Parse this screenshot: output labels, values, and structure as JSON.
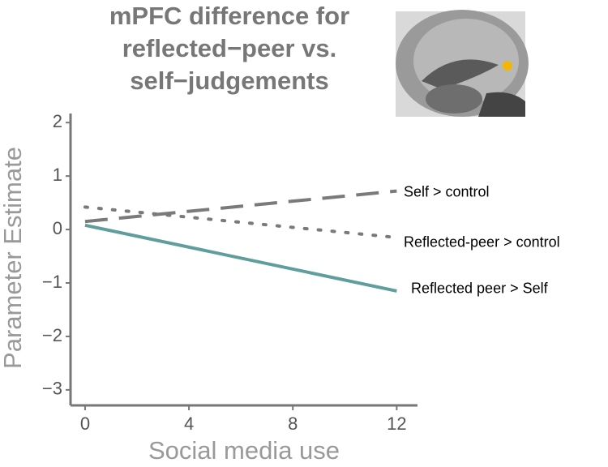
{
  "chart_data": {
    "type": "line",
    "title": [
      "mPFC difference for",
      "reflected−peer vs.",
      "self−judgements"
    ],
    "x_label": "Social media use",
    "y_label": "Parameter Estimate",
    "x": [
      0,
      12
    ],
    "series": [
      {
        "name": "Self > control",
        "color": "#7a7a7a",
        "dash": "dashed",
        "values": [
          0.15,
          0.72
        ]
      },
      {
        "name": "Reflected-peer > control",
        "color": "#7a7a7a",
        "dash": "dotted",
        "values": [
          0.42,
          -0.15
        ]
      },
      {
        "name": "Reflected peer > Self",
        "color": "#5f9e9c",
        "dash": "solid",
        "values": [
          0.08,
          -1.15
        ]
      }
    ],
    "xlim": [
      -0.56,
      12.8
    ],
    "xticks": [
      0,
      4,
      8,
      12
    ],
    "ylim": [
      -3.29,
      2.17
    ],
    "yticks": [
      {
        "value": -3,
        "label": "−3"
      },
      {
        "value": -2,
        "label": "−2"
      },
      {
        "value": -1,
        "label": "−1"
      },
      0,
      1,
      2
    ]
  }
}
